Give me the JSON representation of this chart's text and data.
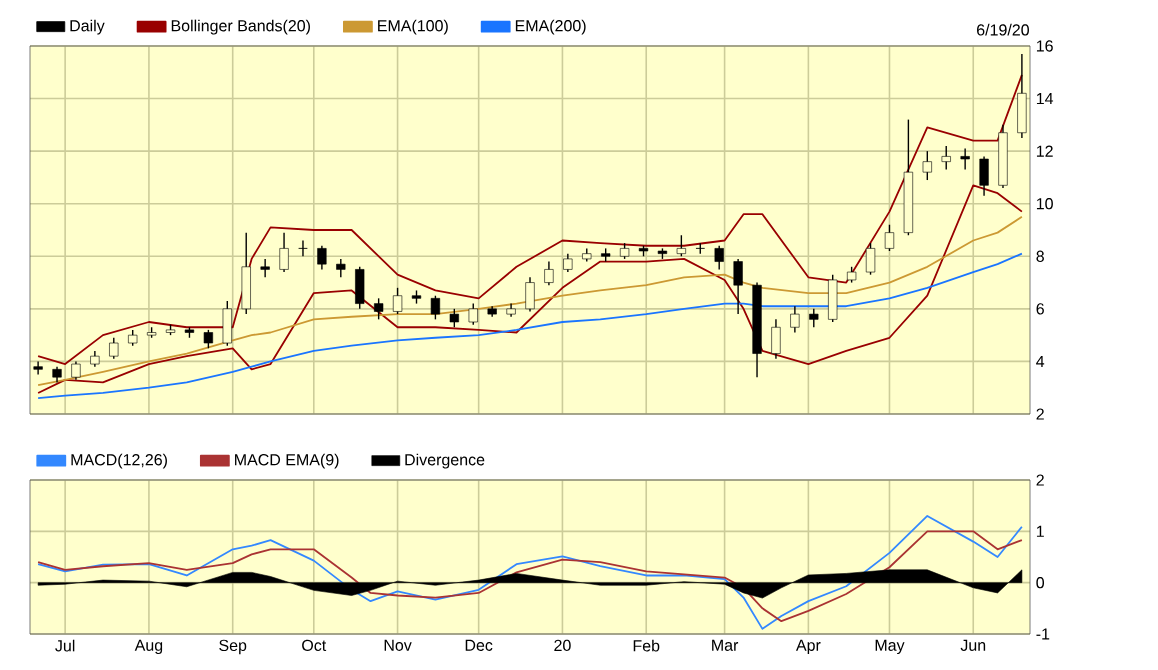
{
  "chart_data": [
    {
      "type": "candlestick",
      "subtitle": "6/19/20",
      "xlim": [
        "2019-06-18",
        "2020-06-22"
      ],
      "ylim": [
        2,
        16
      ],
      "xticks": [
        {
          "value": "2019-07-01",
          "label": null
        },
        {
          "value": "2019-08-01",
          "label": null
        },
        {
          "value": "2019-09-01",
          "label": null
        },
        {
          "value": "2019-10-01",
          "label": null
        },
        {
          "value": "2019-11-01",
          "label": null
        },
        {
          "value": "2019-12-01",
          "label": null
        },
        {
          "value": "2020-01-01",
          "label": null
        },
        {
          "value": "2020-02-01",
          "label": null
        },
        {
          "value": "2020-03-01",
          "label": null
        },
        {
          "value": "2020-04-01",
          "label": null
        },
        {
          "value": "2020-05-01",
          "label": null
        },
        {
          "value": "2020-06-01",
          "label": null
        }
      ],
      "yticks": [
        2,
        4,
        6,
        8,
        10,
        12,
        14,
        16
      ],
      "grid": true,
      "legend": "top",
      "tick_labels": "y",
      "series": [
        {
          "name": "Daily",
          "color": "#000000",
          "x": [
            "2019-06-21",
            "2019-06-28",
            "2019-07-05",
            "2019-07-12",
            "2019-07-19",
            "2019-07-26",
            "2019-08-02",
            "2019-08-09",
            "2019-08-16",
            "2019-08-23",
            "2019-08-30",
            "2019-09-06",
            "2019-09-13",
            "2019-09-20",
            "2019-09-27",
            "2019-10-04",
            "2019-10-11",
            "2019-10-18",
            "2019-10-25",
            "2019-11-01",
            "2019-11-08",
            "2019-11-15",
            "2019-11-22",
            "2019-11-29",
            "2019-12-06",
            "2019-12-13",
            "2019-12-20",
            "2019-12-27",
            "2020-01-03",
            "2020-01-10",
            "2020-01-17",
            "2020-01-24",
            "2020-01-31",
            "2020-02-07",
            "2020-02-14",
            "2020-02-21",
            "2020-02-28",
            "2020-03-06",
            "2020-03-13",
            "2020-03-20",
            "2020-03-27",
            "2020-04-03",
            "2020-04-10",
            "2020-04-17",
            "2020-04-24",
            "2020-05-01",
            "2020-05-08",
            "2020-05-15",
            "2020-05-22",
            "2020-05-29",
            "2020-06-05",
            "2020-06-12",
            "2020-06-19"
          ],
          "ohlc": [
            [
              3.8,
              4.0,
              3.5,
              3.7
            ],
            [
              3.7,
              3.8,
              3.2,
              3.4
            ],
            [
              3.4,
              4.0,
              3.3,
              3.9
            ],
            [
              3.9,
              4.4,
              3.8,
              4.2
            ],
            [
              4.2,
              4.9,
              4.1,
              4.7
            ],
            [
              4.7,
              5.2,
              4.6,
              5.0
            ],
            [
              5.0,
              5.3,
              4.9,
              5.1
            ],
            [
              5.1,
              5.4,
              5.0,
              5.2
            ],
            [
              5.2,
              5.3,
              4.9,
              5.1
            ],
            [
              5.1,
              5.2,
              4.5,
              4.7
            ],
            [
              4.7,
              6.3,
              4.6,
              6.0
            ],
            [
              6.0,
              8.9,
              5.8,
              7.6
            ],
            [
              7.6,
              7.9,
              7.2,
              7.5
            ],
            [
              7.5,
              8.9,
              7.4,
              8.3
            ],
            [
              8.3,
              8.6,
              8.0,
              8.3
            ],
            [
              8.3,
              8.4,
              7.5,
              7.7
            ],
            [
              7.7,
              7.9,
              7.2,
              7.5
            ],
            [
              7.5,
              7.6,
              6.0,
              6.2
            ],
            [
              6.2,
              6.4,
              5.6,
              5.9
            ],
            [
              5.9,
              6.8,
              5.8,
              6.5
            ],
            [
              6.5,
              6.7,
              6.2,
              6.4
            ],
            [
              6.4,
              6.5,
              5.6,
              5.8
            ],
            [
              5.8,
              6.0,
              5.3,
              5.5
            ],
            [
              5.5,
              6.2,
              5.4,
              6.0
            ],
            [
              6.0,
              6.1,
              5.7,
              5.8
            ],
            [
              5.8,
              6.2,
              5.7,
              6.0
            ],
            [
              6.0,
              7.2,
              5.9,
              7.0
            ],
            [
              7.0,
              7.8,
              6.9,
              7.5
            ],
            [
              7.5,
              8.1,
              7.4,
              7.9
            ],
            [
              7.9,
              8.3,
              7.8,
              8.1
            ],
            [
              8.1,
              8.3,
              7.8,
              8.0
            ],
            [
              8.0,
              8.5,
              7.9,
              8.3
            ],
            [
              8.3,
              8.4,
              8.0,
              8.2
            ],
            [
              8.2,
              8.3,
              7.9,
              8.1
            ],
            [
              8.1,
              8.8,
              8.0,
              8.3
            ],
            [
              8.3,
              8.5,
              8.1,
              8.3
            ],
            [
              8.3,
              8.4,
              7.5,
              7.8
            ],
            [
              7.8,
              7.9,
              5.8,
              6.9
            ],
            [
              6.9,
              7.0,
              3.4,
              4.3
            ],
            [
              4.3,
              5.6,
              4.1,
              5.3
            ],
            [
              5.3,
              6.1,
              5.1,
              5.8
            ],
            [
              5.8,
              6.0,
              5.3,
              5.6
            ],
            [
              5.6,
              7.3,
              5.5,
              7.1
            ],
            [
              7.1,
              7.6,
              7.0,
              7.4
            ],
            [
              7.4,
              8.5,
              7.3,
              8.3
            ],
            [
              8.3,
              9.2,
              8.2,
              8.9
            ],
            [
              8.9,
              13.2,
              8.8,
              11.2
            ],
            [
              11.2,
              12.0,
              10.9,
              11.6
            ],
            [
              11.6,
              12.2,
              11.3,
              11.8
            ],
            [
              11.8,
              12.1,
              11.3,
              11.7
            ],
            [
              11.7,
              11.8,
              10.3,
              10.7
            ],
            [
              10.7,
              13.0,
              10.6,
              12.7
            ],
            [
              12.7,
              15.7,
              12.5,
              14.2
            ]
          ]
        },
        {
          "name": "Bollinger Bands(20)",
          "type": "line",
          "color": "#990000",
          "x": [
            "2019-06-21",
            "2019-07-01",
            "2019-07-15",
            "2019-08-01",
            "2019-08-15",
            "2019-09-01",
            "2019-09-08",
            "2019-09-15",
            "2019-10-01",
            "2019-10-15",
            "2019-11-01",
            "2019-11-15",
            "2019-12-01",
            "2019-12-15",
            "2020-01-01",
            "2020-01-15",
            "2020-02-01",
            "2020-02-15",
            "2020-03-01",
            "2020-03-08",
            "2020-03-15",
            "2020-04-01",
            "2020-04-15",
            "2020-05-01",
            "2020-05-15",
            "2020-06-01",
            "2020-06-10",
            "2020-06-19"
          ],
          "values": [
            4.2,
            3.9,
            5.0,
            5.5,
            5.3,
            5.3,
            7.9,
            9.1,
            9.0,
            9.0,
            7.3,
            6.7,
            6.4,
            7.6,
            8.6,
            8.5,
            8.4,
            8.4,
            8.6,
            9.6,
            9.6,
            7.2,
            7.0,
            9.7,
            12.9,
            12.4,
            12.4,
            14.9
          ]
        },
        {
          "type": "line",
          "color": "#990000",
          "x": [
            "2019-06-21",
            "2019-07-01",
            "2019-07-15",
            "2019-08-01",
            "2019-08-15",
            "2019-09-01",
            "2019-09-08",
            "2019-09-15",
            "2019-10-01",
            "2019-10-15",
            "2019-11-01",
            "2019-11-15",
            "2019-12-01",
            "2019-12-15",
            "2020-01-01",
            "2020-01-15",
            "2020-02-01",
            "2020-02-15",
            "2020-03-01",
            "2020-03-08",
            "2020-03-15",
            "2020-04-01",
            "2020-04-15",
            "2020-05-01",
            "2020-05-15",
            "2020-06-01",
            "2020-06-10",
            "2020-06-19"
          ],
          "values": [
            2.8,
            3.3,
            3.2,
            3.9,
            4.2,
            4.5,
            3.7,
            3.9,
            6.6,
            6.7,
            5.3,
            5.3,
            5.2,
            5.1,
            6.8,
            7.8,
            7.8,
            7.9,
            7.1,
            6.0,
            4.4,
            3.9,
            4.4,
            4.9,
            6.5,
            10.7,
            10.4,
            9.7
          ]
        },
        {
          "name": "EMA(100)",
          "type": "line",
          "color": "#cc9933",
          "x": [
            "2019-06-21",
            "2019-07-01",
            "2019-07-15",
            "2019-08-01",
            "2019-08-15",
            "2019-09-01",
            "2019-09-08",
            "2019-09-15",
            "2019-10-01",
            "2019-10-15",
            "2019-11-01",
            "2019-11-15",
            "2019-12-01",
            "2019-12-15",
            "2020-01-01",
            "2020-01-15",
            "2020-02-01",
            "2020-02-15",
            "2020-03-01",
            "2020-03-08",
            "2020-03-15",
            "2020-04-01",
            "2020-04-15",
            "2020-05-01",
            "2020-05-15",
            "2020-06-01",
            "2020-06-10",
            "2020-06-19"
          ],
          "values": [
            3.1,
            3.3,
            3.6,
            4.0,
            4.3,
            4.8,
            5.0,
            5.1,
            5.6,
            5.7,
            5.8,
            5.8,
            6.0,
            6.2,
            6.5,
            6.7,
            6.9,
            7.2,
            7.3,
            7.0,
            6.8,
            6.6,
            6.6,
            7.0,
            7.6,
            8.6,
            8.9,
            9.5
          ]
        },
        {
          "name": "EMA(200)",
          "type": "line",
          "color": "#1a75ff",
          "x": [
            "2019-06-21",
            "2019-07-01",
            "2019-07-15",
            "2019-08-01",
            "2019-08-15",
            "2019-09-01",
            "2019-09-08",
            "2019-09-15",
            "2019-10-01",
            "2019-10-15",
            "2019-11-01",
            "2019-11-15",
            "2019-12-01",
            "2019-12-15",
            "2020-01-01",
            "2020-01-15",
            "2020-02-01",
            "2020-02-15",
            "2020-03-01",
            "2020-03-08",
            "2020-03-15",
            "2020-04-01",
            "2020-04-15",
            "2020-05-01",
            "2020-05-15",
            "2020-06-01",
            "2020-06-10",
            "2020-06-19"
          ],
          "values": [
            2.6,
            2.7,
            2.8,
            3.0,
            3.2,
            3.6,
            3.8,
            4.0,
            4.4,
            4.6,
            4.8,
            4.9,
            5.0,
            5.2,
            5.5,
            5.6,
            5.8,
            6.0,
            6.2,
            6.2,
            6.1,
            6.1,
            6.1,
            6.4,
            6.8,
            7.4,
            7.7,
            8.1
          ]
        }
      ]
    },
    {
      "type": "line",
      "xlim": [
        "2019-06-18",
        "2020-06-22"
      ],
      "ylim": [
        -1,
        2
      ],
      "xticks": [
        {
          "value": "2019-07-01",
          "label": "Jul"
        },
        {
          "value": "2019-08-01",
          "label": "Aug"
        },
        {
          "value": "2019-09-01",
          "label": "Sep"
        },
        {
          "value": "2019-10-01",
          "label": "Oct"
        },
        {
          "value": "2019-11-01",
          "label": "Nov"
        },
        {
          "value": "2019-12-01",
          "label": "Dec"
        },
        {
          "value": "2020-01-01",
          "label": "20"
        },
        {
          "value": "2020-02-01",
          "label": "Feb"
        },
        {
          "value": "2020-03-01",
          "label": "Mar"
        },
        {
          "value": "2020-04-01",
          "label": "Apr"
        },
        {
          "value": "2020-05-01",
          "label": "May"
        },
        {
          "value": "2020-06-01",
          "label": "Jun"
        }
      ],
      "yticks": [
        -1,
        0,
        1,
        2
      ],
      "grid": true,
      "legend": "top",
      "series": [
        {
          "name": "MACD(12,26)",
          "color": "#3388ff",
          "x": [
            "2019-06-21",
            "2019-07-01",
            "2019-07-15",
            "2019-08-01",
            "2019-08-15",
            "2019-09-01",
            "2019-09-08",
            "2019-09-15",
            "2019-10-01",
            "2019-10-15",
            "2019-10-22",
            "2019-11-01",
            "2019-11-15",
            "2019-12-01",
            "2019-12-15",
            "2020-01-01",
            "2020-01-15",
            "2020-02-01",
            "2020-02-15",
            "2020-03-01",
            "2020-03-08",
            "2020-03-15",
            "2020-03-22",
            "2020-04-01",
            "2020-04-15",
            "2020-05-01",
            "2020-05-15",
            "2020-06-01",
            "2020-06-10",
            "2020-06-19"
          ],
          "values": [
            0.36,
            0.22,
            0.35,
            0.36,
            0.14,
            0.65,
            0.72,
            0.83,
            0.43,
            -0.14,
            -0.36,
            -0.17,
            -0.33,
            -0.14,
            0.36,
            0.51,
            0.32,
            0.14,
            0.14,
            0.07,
            -0.29,
            -0.9,
            -0.65,
            -0.36,
            -0.07,
            0.58,
            1.3,
            0.8,
            0.5,
            1.09
          ]
        },
        {
          "name": "MACD EMA(9)",
          "color": "#aa3333",
          "x": [
            "2019-06-21",
            "2019-07-01",
            "2019-07-15",
            "2019-08-01",
            "2019-08-15",
            "2019-09-01",
            "2019-09-08",
            "2019-09-15",
            "2019-10-01",
            "2019-10-15",
            "2019-10-22",
            "2019-11-01",
            "2019-11-15",
            "2019-12-01",
            "2019-12-15",
            "2020-01-01",
            "2020-01-15",
            "2020-02-01",
            "2020-02-15",
            "2020-03-01",
            "2020-03-08",
            "2020-03-15",
            "2020-03-22",
            "2020-04-01",
            "2020-04-15",
            "2020-05-01",
            "2020-05-15",
            "2020-06-01",
            "2020-06-10",
            "2020-06-19"
          ],
          "values": [
            0.4,
            0.25,
            0.32,
            0.38,
            0.25,
            0.38,
            0.55,
            0.65,
            0.65,
            0.1,
            -0.2,
            -0.25,
            -0.29,
            -0.2,
            0.2,
            0.45,
            0.4,
            0.22,
            0.16,
            0.1,
            -0.1,
            -0.5,
            -0.75,
            -0.55,
            -0.22,
            0.3,
            1.0,
            1.0,
            0.65,
            0.83
          ]
        },
        {
          "name": "Divergence",
          "type": "area",
          "color": "#000000",
          "x": [
            "2019-06-21",
            "2019-07-01",
            "2019-07-15",
            "2019-08-01",
            "2019-08-15",
            "2019-09-01",
            "2019-09-08",
            "2019-09-15",
            "2019-10-01",
            "2019-10-15",
            "2019-10-22",
            "2019-11-01",
            "2019-11-15",
            "2019-12-01",
            "2019-12-15",
            "2020-01-01",
            "2020-01-15",
            "2020-02-01",
            "2020-02-15",
            "2020-03-01",
            "2020-03-08",
            "2020-03-15",
            "2020-03-22",
            "2020-04-01",
            "2020-04-15",
            "2020-05-01",
            "2020-05-15",
            "2020-06-01",
            "2020-06-10",
            "2020-06-19"
          ],
          "values": [
            -0.05,
            -0.03,
            0.05,
            0.03,
            -0.08,
            0.2,
            0.2,
            0.12,
            -0.15,
            -0.25,
            -0.15,
            0.03,
            -0.05,
            0.05,
            0.18,
            0.05,
            -0.05,
            -0.05,
            0.02,
            -0.03,
            -0.2,
            -0.3,
            -0.1,
            0.15,
            0.18,
            0.25,
            0.25,
            -0.1,
            -0.2,
            0.25
          ]
        }
      ]
    }
  ]
}
